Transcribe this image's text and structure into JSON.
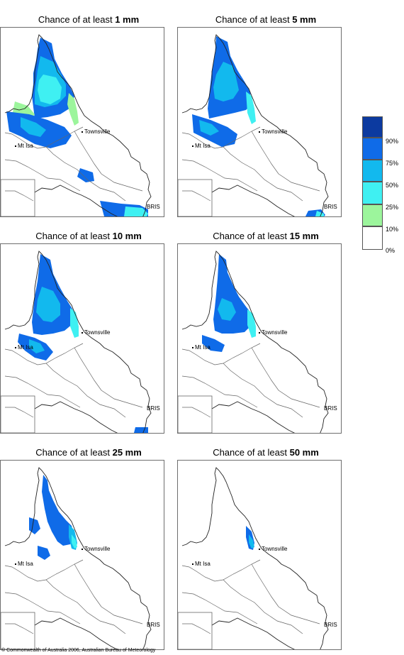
{
  "panels": [
    {
      "prefix": "Chance of at least ",
      "amount": "1 mm",
      "level": "1mm"
    },
    {
      "prefix": "Chance of at least ",
      "amount": "5 mm",
      "level": "5mm"
    },
    {
      "prefix": "Chance of at least ",
      "amount": "10 mm",
      "level": "10mm"
    },
    {
      "prefix": "Chance of at least ",
      "amount": "15 mm",
      "level": "15mm"
    },
    {
      "prefix": "Chance of at least ",
      "amount": "25 mm",
      "level": "25mm"
    },
    {
      "prefix": "Chance of at least ",
      "amount": "50 mm",
      "level": "50mm"
    }
  ],
  "places": {
    "townsville": "Townsville",
    "mt_isa": "Mt Isa",
    "bris": "BRIS"
  },
  "legend": {
    "labels": [
      "90%",
      "75%",
      "50%",
      "25%",
      "10%",
      "0%"
    ],
    "colors": [
      "#0c3aa0",
      "#0f6be8",
      "#12b9ee",
      "#3ff0f2",
      "#9cf59c",
      "#ffffff"
    ]
  },
  "copyright": "© Commonwealth of Australia 2006, Australian Bureau of Meteorology"
}
